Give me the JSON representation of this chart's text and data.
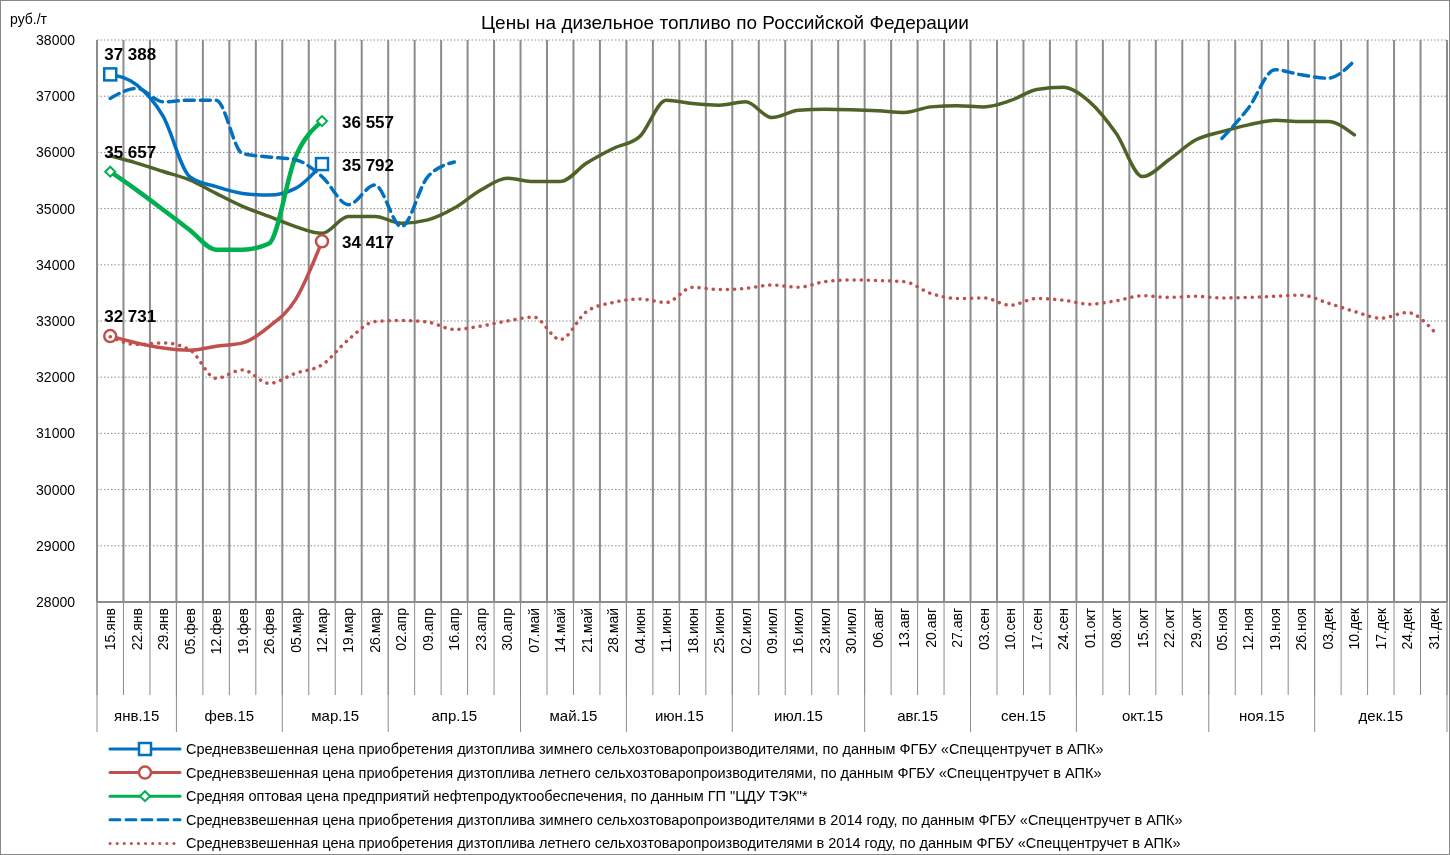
{
  "chart_data": {
    "type": "line",
    "title": "Цены на дизельное топливо по Российской Федерации",
    "ylabel": "руб./т",
    "categories": [
      "15.янв",
      "22.янв",
      "29.янв",
      "05.фев",
      "12.фев",
      "19.фев",
      "26.фев",
      "05.мар",
      "12.мар",
      "19.мар",
      "26.мар",
      "02.апр",
      "09.апр",
      "16.апр",
      "23.апр",
      "30.апр",
      "07.май",
      "14.май",
      "21.май",
      "28.май",
      "04.июн",
      "11.июн",
      "18.июн",
      "25.июн",
      "02.июл",
      "09.июл",
      "16.июл",
      "23.июл",
      "30.июл",
      "06.авг",
      "13.авг",
      "20.авг",
      "27.авг",
      "03.сен",
      "10.сен",
      "17.сен",
      "24.сен",
      "01.окт",
      "08.окт",
      "15.окт",
      "22.окт",
      "29.окт",
      "05.ноя",
      "12.ноя",
      "19.ноя",
      "26.ноя",
      "03.дек",
      "10.дек",
      "17.дек",
      "24.дек",
      "31.дек"
    ],
    "ylim": [
      28000,
      38000
    ],
    "yticks": [
      28000,
      29000,
      30000,
      31000,
      32000,
      33000,
      34000,
      35000,
      36000,
      37000,
      38000
    ],
    "grid": true,
    "legend": "bottom",
    "series": [
      {
        "color": "#4f6228",
        "line_style": "solid",
        "values": [
          35940,
          35810,
          35660,
          35510,
          35270,
          35040,
          34860,
          34680,
          34560,
          34860,
          34860,
          34740,
          34800,
          35010,
          35330,
          35540,
          35480,
          35480,
          35810,
          36070,
          36280,
          36930,
          36870,
          36840,
          36900,
          36620,
          36750,
          36770,
          36760,
          36740,
          36710,
          36810,
          36830,
          36810,
          36920,
          37120,
          37160,
          36900,
          36340,
          35570,
          35870,
          36220,
          36370,
          36490,
          36570,
          36550,
          36550,
          36310,
          null,
          null,
          null
        ]
      },
      {
        "name": "Средневзвешенная цена приобретения дизтоплива зимнего сельхозтоваропроизводителями, по данным ФГБУ «Спеццентручет в АПК»",
        "color": "#0070c0",
        "line_style": "solid",
        "values": [
          37388,
          37200,
          36640,
          35570,
          35390,
          35270,
          35240,
          35360,
          35792,
          null,
          null,
          null,
          null,
          null,
          null,
          null,
          null,
          null,
          null,
          null,
          null,
          null,
          null,
          null,
          null,
          null,
          null,
          null,
          null,
          null,
          null,
          null,
          null,
          null,
          null,
          null,
          null,
          null,
          null,
          null,
          null,
          null,
          null,
          null,
          null,
          null,
          null,
          null,
          null,
          null,
          null
        ]
      },
      {
        "type": "scatter",
        "color": "#0070c0",
        "marker": "square",
        "x": [
          "15.янв",
          "12.мар"
        ],
        "values": [
          37388,
          35792
        ],
        "value_labels": [
          "37 388",
          "35 792"
        ]
      },
      {
        "name": "Средневзвешенная цена приобретения дизтоплива летнего сельхозтоваропроизводителями, по данным ФГБУ «Спеццентручет в АПК»",
        "color": "#c0504d",
        "line_style": "solid",
        "values": [
          32731,
          32610,
          32520,
          32480,
          32550,
          32610,
          32900,
          33380,
          34417,
          null,
          null,
          null,
          null,
          null,
          null,
          null,
          null,
          null,
          null,
          null,
          null,
          null,
          null,
          null,
          null,
          null,
          null,
          null,
          null,
          null,
          null,
          null,
          null,
          null,
          null,
          null,
          null,
          null,
          null,
          null,
          null,
          null,
          null,
          null,
          null,
          null,
          null,
          null,
          null,
          null,
          null
        ]
      },
      {
        "type": "scatter",
        "color": "#c0504d",
        "marker": "circle",
        "x": [
          "15.янв",
          "12.мар"
        ],
        "values": [
          32731,
          34417
        ],
        "value_labels": [
          "32 731",
          "34 417"
        ]
      },
      {
        "name": "Средняя оптовая цена предприятий нефтепродуктообеспечения, по данным ГП \"ЦДУ ТЭК\"*",
        "color": "#00b050",
        "line_style": "solid",
        "values": [
          35657,
          35330,
          34980,
          34620,
          34270,
          34270,
          34380,
          35920,
          36557,
          null,
          null,
          null,
          null,
          null,
          null,
          null,
          null,
          null,
          null,
          null,
          null,
          null,
          null,
          null,
          null,
          null,
          null,
          null,
          null,
          null,
          null,
          null,
          null,
          null,
          null,
          null,
          null,
          null,
          null,
          null,
          null,
          null,
          null,
          null,
          null,
          null,
          null,
          null,
          null,
          null,
          null
        ]
      },
      {
        "type": "scatter",
        "color": "#00b050",
        "marker": "diamond",
        "x": [
          "15.янв",
          "12.мар"
        ],
        "values": [
          35657,
          36557
        ],
        "value_labels": [
          "35 657",
          "36 557"
        ]
      },
      {
        "name": "Средневзвешенная цена приобретения дизтоплива зимнего сельхозтоваропроизводителями в 2014 году, по данным ФГБУ «Спеццентручет в АПК»",
        "color": "#0070c0",
        "line_style": "dashed",
        "marker": "none",
        "values": [
          36960,
          37140,
          36900,
          36930,
          36930,
          35980,
          35920,
          35870,
          35570,
          35070,
          35420,
          34680,
          35570,
          35830,
          null,
          null,
          null,
          null,
          null,
          null,
          null,
          null,
          null,
          null,
          null,
          null,
          null,
          null,
          null,
          null,
          null,
          null,
          null,
          null,
          null,
          null,
          null,
          null,
          null,
          null,
          null,
          null,
          36250,
          36790,
          37470,
          37380,
          37320,
          37630,
          null,
          null,
          null
        ]
      },
      {
        "name": "Средневзвешенная цена приобретения дизтоплива летнего сельхозтоваропроизводителями в 2014 году, по данным ФГБУ «Спеццентручет в АПК»",
        "color": "#c0504d",
        "line_style": "dotted",
        "marker": "none",
        "values": [
          32720,
          32580,
          32610,
          32490,
          31980,
          32130,
          31890,
          32070,
          32220,
          32670,
          32990,
          33010,
          32980,
          32850,
          32910,
          33000,
          33070,
          32670,
          33170,
          33330,
          33390,
          33330,
          33600,
          33560,
          33580,
          33640,
          33600,
          33700,
          33730,
          33720,
          33700,
          33490,
          33400,
          33410,
          33280,
          33400,
          33370,
          33300,
          33360,
          33450,
          33420,
          33440,
          33410,
          33420,
          33440,
          33460,
          33320,
          33170,
          33050,
          33150,
          32820
        ]
      }
    ],
    "annotations": [
      "янв.15",
      "фев.15",
      "мар.15",
      "апр.15",
      "май.15",
      "июн.15",
      "июл.15",
      "авг.15",
      "сен.15",
      "окт.15",
      "ноя.15",
      "дек.15"
    ]
  }
}
